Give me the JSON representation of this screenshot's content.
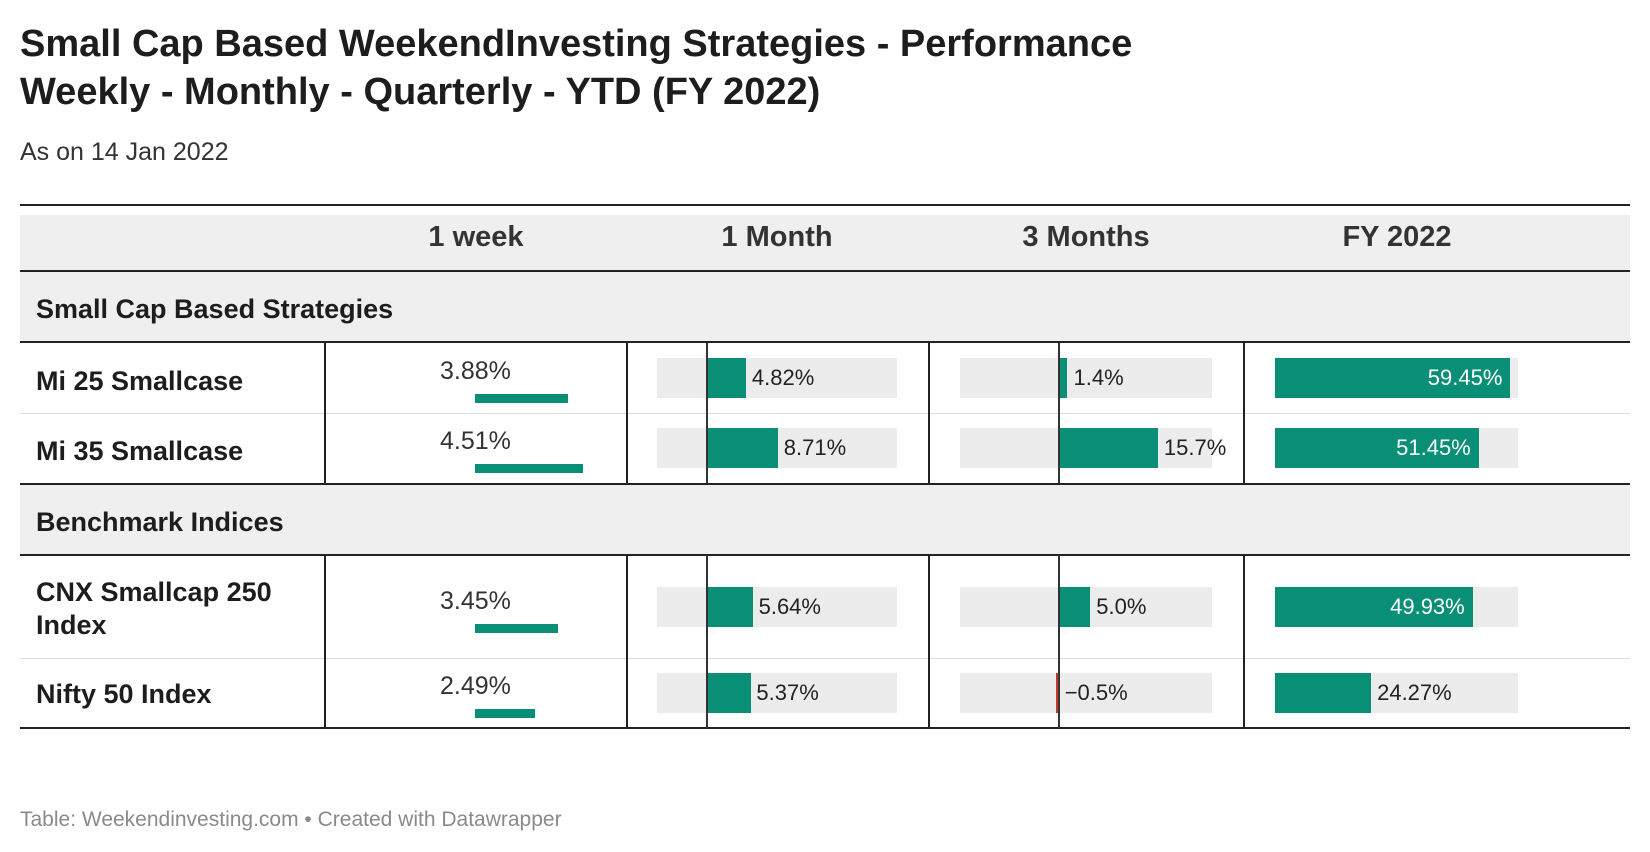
{
  "title_line1": "Small Cap Based WeekendInvesting Strategies - Performance",
  "title_line2": "Weekly - Monthly - Quarterly - YTD (FY 2022)",
  "subtitle": "As on 14 Jan 2022",
  "footer": "Table: Weekendinvesting.com • Created with Datawrapper",
  "colors": {
    "positive": "#0a8f77",
    "negative": "#c0392b",
    "track": "#ececec",
    "header_bg": "#efefef"
  },
  "chart_data": {
    "type": "table",
    "columns": [
      "1 week",
      "1 Month",
      "3 Months",
      "FY 2022"
    ],
    "groups": [
      {
        "label": "Small Cap Based Strategies",
        "rows": [
          {
            "name": "Mi 25 Smallcase",
            "week": 3.88,
            "week_label": "3.88%",
            "month": 4.82,
            "month_label": "4.82%",
            "three_month": 1.4,
            "three_month_label": "1.4%",
            "fy": 59.45,
            "fy_label": "59.45%"
          },
          {
            "name": "Mi 35 Smallcase",
            "week": 4.51,
            "week_label": "4.51%",
            "month": 8.71,
            "month_label": "8.71%",
            "three_month": 15.7,
            "three_month_label": "15.7%",
            "fy": 51.45,
            "fy_label": "51.45%"
          }
        ]
      },
      {
        "label": "Benchmark Indices",
        "rows": [
          {
            "name": "CNX Smallcap 250 Index",
            "week": 3.45,
            "week_label": "3.45%",
            "month": 5.64,
            "month_label": "5.64%",
            "three_month": 5.0,
            "three_month_label": "5.0%",
            "fy": 49.93,
            "fy_label": "49.93%"
          },
          {
            "name": "Nifty 50 Index",
            "week": 2.49,
            "week_label": "2.49%",
            "month": 5.37,
            "month_label": "5.37%",
            "three_month": -0.5,
            "three_month_label": "−0.5%",
            "fy": 24.27,
            "fy_label": "24.27%"
          }
        ]
      }
    ],
    "scales": {
      "week": [
        0,
        4.51
      ],
      "month": [
        -6.04,
        23.27
      ],
      "three_month": [
        -15.62,
        24.27
      ],
      "fy": [
        0,
        61.36
      ]
    }
  }
}
